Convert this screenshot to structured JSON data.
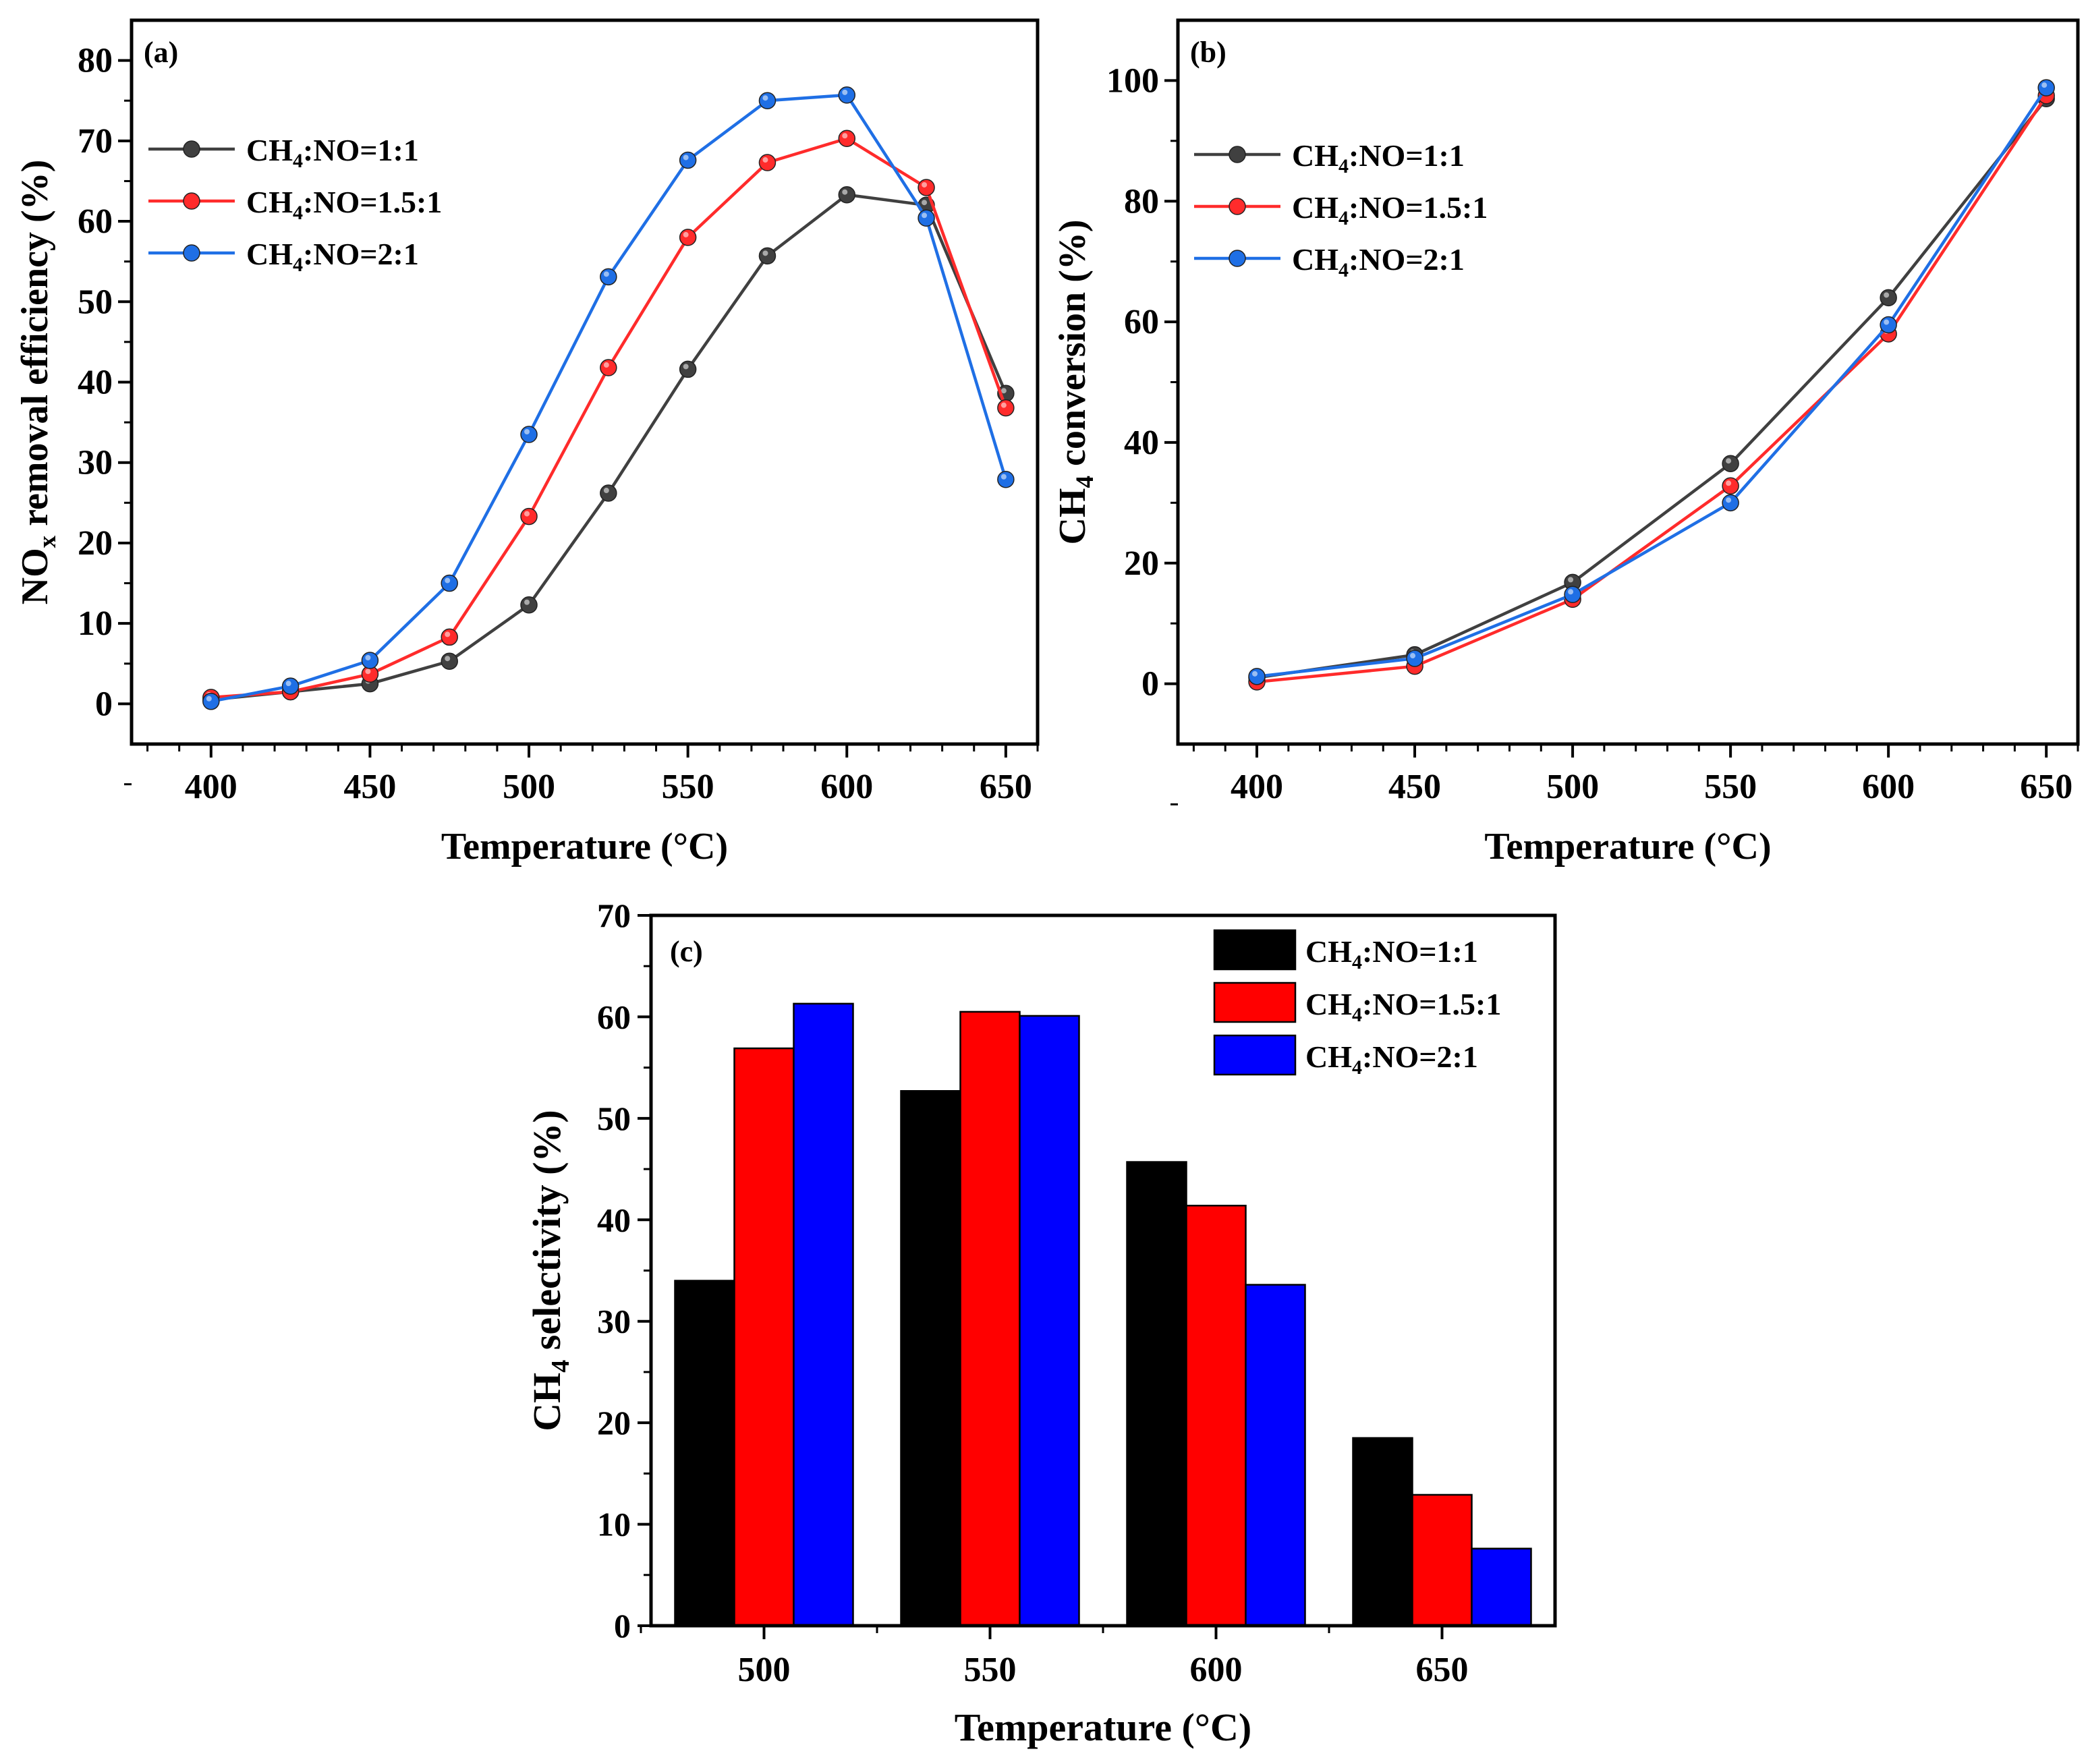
{
  "series_colors": {
    "s1": "#404040",
    "s2": "#ff2b2b",
    "s3": "#1f6fe5"
  },
  "bar_colors": {
    "s1": "#000000",
    "s2": "#ff0000",
    "s3": "#0000ff"
  },
  "legend_labels": [
    {
      "pre": "CH",
      "sub": "4",
      "post": ":NO=1:1"
    },
    {
      "pre": "CH",
      "sub": "4",
      "post": ":NO=1.5:1"
    },
    {
      "pre": "CH",
      "sub": "4",
      "post": ":NO=2:1"
    }
  ],
  "chart_data": [
    {
      "id": "a",
      "type": "line",
      "panel_label": "(a)",
      "xlabel": "Temperature (°C)",
      "ylabel": {
        "pre": "NO",
        "sub": "x",
        "post": " removal efficiency (%)"
      },
      "xlim": [
        375,
        660
      ],
      "ylim": [
        -5,
        85
      ],
      "xticks": [
        400,
        450,
        500,
        550,
        600,
        650
      ],
      "yticks": [
        0,
        10,
        20,
        30,
        40,
        50,
        60,
        70,
        80
      ],
      "x": [
        400,
        425,
        450,
        475,
        500,
        525,
        550,
        575,
        600,
        625,
        650
      ],
      "series": [
        {
          "name": "CH4:NO=1:1",
          "values": [
            0.5,
            1.5,
            2.5,
            5.3,
            12.3,
            26.2,
            41.6,
            55.7,
            63.3,
            62.0,
            38.6
          ]
        },
        {
          "name": "CH4:NO=1.5:1",
          "values": [
            0.8,
            1.5,
            3.7,
            8.3,
            23.3,
            41.8,
            58.0,
            67.3,
            70.3,
            64.2,
            36.8
          ]
        },
        {
          "name": "CH4:NO=2:1",
          "values": [
            0.3,
            2.2,
            5.4,
            15.0,
            33.5,
            53.1,
            67.6,
            75.0,
            75.7,
            60.4,
            27.9
          ]
        }
      ]
    },
    {
      "id": "b",
      "type": "line",
      "panel_label": "(b)",
      "xlabel": "Temperature (°C)",
      "ylabel": {
        "pre": "CH",
        "sub": "4",
        "post": " conversion (%)"
      },
      "xlim": [
        375,
        660
      ],
      "ylim": [
        -10,
        110
      ],
      "xticks": [
        400,
        450,
        500,
        550,
        600,
        650
      ],
      "yticks": [
        0,
        20,
        40,
        60,
        80,
        100
      ],
      "x": [
        400,
        450,
        500,
        550,
        600,
        650
      ],
      "series": [
        {
          "name": "CH4:NO=1:1",
          "values": [
            1.0,
            4.8,
            16.8,
            36.5,
            64.0,
            97.0
          ]
        },
        {
          "name": "CH4:NO=1.5:1",
          "values": [
            0.3,
            2.9,
            14.0,
            32.8,
            58.0,
            97.5
          ]
        },
        {
          "name": "CH4:NO=2:1",
          "values": [
            1.2,
            4.2,
            14.8,
            30.0,
            59.5,
            98.8
          ]
        }
      ]
    },
    {
      "id": "c",
      "type": "bar",
      "panel_label": "(c)",
      "xlabel": "Temperature (°C)",
      "ylabel": {
        "pre": "CH",
        "sub": "4",
        "post": " selectivity (%)"
      },
      "ylim": [
        0,
        70
      ],
      "yticks": [
        0,
        10,
        20,
        30,
        40,
        50,
        60,
        70
      ],
      "categories": [
        "500",
        "550",
        "600",
        "650"
      ],
      "series": [
        {
          "name": "CH4:NO=1:1",
          "values": [
            34.0,
            52.7,
            45.7,
            18.5
          ]
        },
        {
          "name": "CH4:NO=1.5:1",
          "values": [
            56.9,
            60.5,
            41.4,
            12.9
          ]
        },
        {
          "name": "CH4:NO=2:1",
          "values": [
            61.3,
            60.1,
            33.6,
            7.6
          ]
        }
      ]
    }
  ]
}
